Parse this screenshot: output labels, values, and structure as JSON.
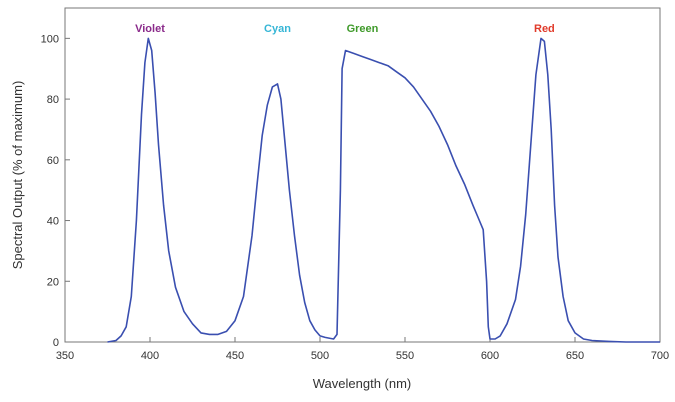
{
  "chart_data": {
    "type": "line",
    "title": "",
    "xlabel": "Wavelength (nm)",
    "ylabel": "Spectral Output (% of maximum)",
    "xlim": [
      350,
      700
    ],
    "ylim": [
      0,
      110
    ],
    "x_ticks": [
      350,
      400,
      450,
      500,
      550,
      600,
      650,
      700
    ],
    "y_ticks": [
      0,
      20,
      40,
      60,
      80,
      100
    ],
    "grid": false,
    "line_color": "#3a4fb0",
    "peak_labels": [
      {
        "text": "Violet",
        "x": 400,
        "color": "#8a2a8a"
      },
      {
        "text": "Cyan",
        "x": 475,
        "color": "#36b6d6"
      },
      {
        "text": "Green",
        "x": 525,
        "color": "#3f9a2a"
      },
      {
        "text": "Red",
        "x": 632,
        "color": "#e03a2a"
      }
    ],
    "series": [
      {
        "x": [
          375,
          380,
          383,
          386,
          389,
          392,
          395,
          397,
          399,
          401,
          403,
          405,
          408,
          411,
          415,
          420,
          425,
          430,
          435,
          440,
          445,
          450,
          455,
          460,
          463,
          466,
          469,
          472,
          475,
          477,
          479,
          482,
          485,
          488,
          491,
          494,
          497,
          500,
          503,
          506,
          508,
          510,
          512,
          513,
          515,
          520,
          525,
          530,
          535,
          540,
          545,
          550,
          555,
          560,
          565,
          570,
          575,
          580,
          585,
          590,
          593,
          596,
          598,
          599,
          600,
          603,
          606,
          610,
          615,
          618,
          621,
          624,
          627,
          630,
          632,
          634,
          636,
          638,
          640,
          643,
          646,
          650,
          655,
          660,
          670,
          680,
          690,
          700
        ],
        "y": [
          0,
          0.5,
          2,
          5,
          15,
          40,
          75,
          92,
          100,
          96,
          82,
          65,
          45,
          30,
          18,
          10,
          6,
          3,
          2.5,
          2.5,
          3.5,
          7,
          15,
          35,
          52,
          68,
          78,
          84,
          85,
          80,
          68,
          50,
          35,
          22,
          13,
          7,
          4,
          2,
          1.5,
          1.2,
          1,
          2.5,
          50,
          90,
          96,
          95,
          94,
          93,
          92,
          91,
          89,
          87,
          84,
          80,
          76,
          71,
          65,
          58,
          52,
          45,
          41,
          37,
          20,
          5,
          1,
          1,
          2,
          6,
          14,
          25,
          42,
          65,
          88,
          100,
          99,
          88,
          70,
          45,
          28,
          15,
          7,
          3,
          1,
          0.5,
          0.2,
          0,
          0,
          0
        ]
      }
    ]
  }
}
